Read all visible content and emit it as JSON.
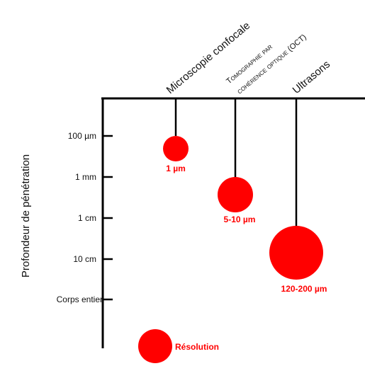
{
  "colors": {
    "axis": "#000000",
    "marker": "#ff0000",
    "text": "#111111"
  },
  "diagram": {
    "y_axis_label": "Profondeur de pénétration",
    "depth_levels": [
      "100 µm",
      "1 mm",
      "1 cm",
      "10 cm",
      "Corps entier"
    ],
    "techniques": [
      {
        "name": "Microscopie confocale",
        "resolution": "1 µm",
        "depth": "100 µm"
      },
      {
        "name_line1": "Tomographie par",
        "name_line2": "cohérence optique (OCT)",
        "resolution": "5-10 µm",
        "depth": "1 mm"
      },
      {
        "name": "Ultrasons",
        "resolution": "120-200 µm",
        "depth": "10 cm"
      }
    ],
    "legend": {
      "label": "Résolution"
    }
  }
}
